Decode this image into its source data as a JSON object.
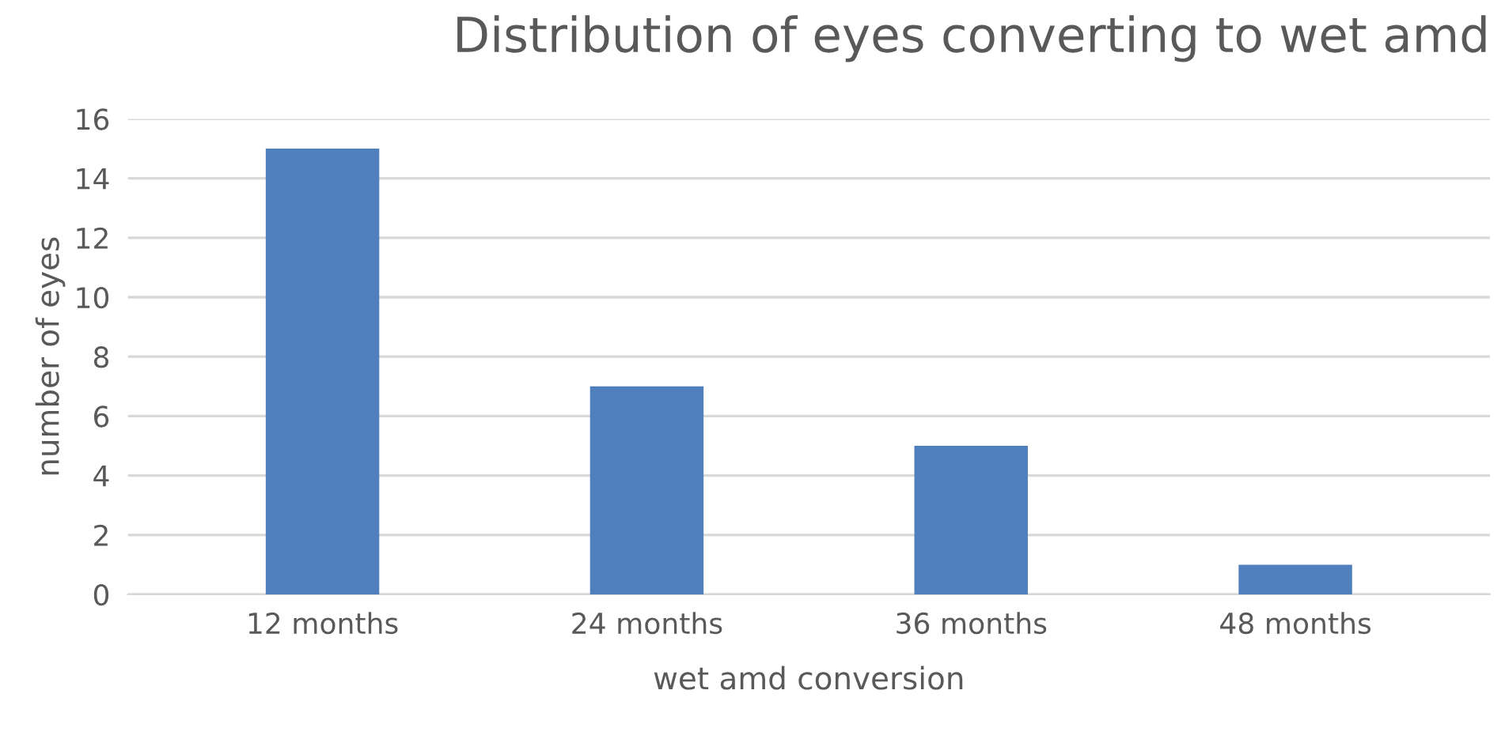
{
  "chart_data": {
    "type": "bar",
    "title": "Distribution of eyes converting to wet amd",
    "xlabel": "wet amd conversion",
    "ylabel": "number of eyes",
    "categories": [
      "12 months",
      "24 months",
      "36 months",
      "48 months"
    ],
    "values": [
      15,
      7,
      5,
      1
    ],
    "color": "#4f7fbd",
    "ylim": [
      0,
      16
    ],
    "yticks": [
      0,
      2,
      4,
      6,
      8,
      10,
      12,
      14,
      16
    ],
    "grid": "y"
  }
}
